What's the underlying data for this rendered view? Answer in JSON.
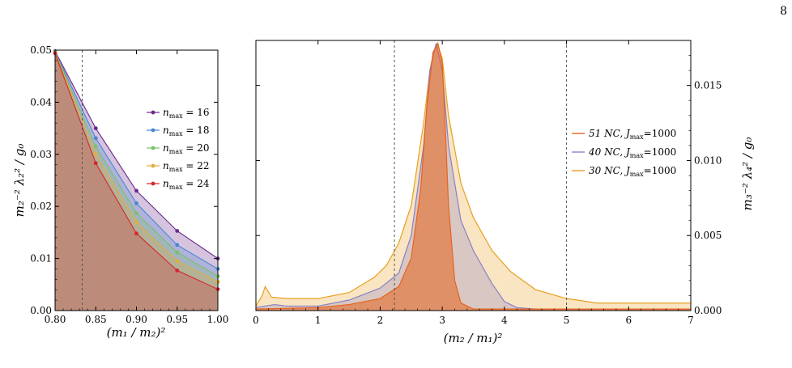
{
  "page_number": "8",
  "chart_data": [
    {
      "type": "area",
      "xlabel": "(m₁ / m₂)²",
      "ylabel": "m₂⁻² λ₂² / g₀",
      "xlim": [
        0.8,
        1.0
      ],
      "ylim": [
        0,
        0.05
      ],
      "x_ticks": [
        "0.80",
        "0.85",
        "0.90",
        "0.95",
        "1.00"
      ],
      "y_ticks": [
        "0.00",
        "0.01",
        "0.02",
        "0.03",
        "0.04",
        "0.05"
      ],
      "vline": 0.8333,
      "legend_position": "right",
      "x": [
        0.8,
        0.85,
        0.9,
        0.95,
        1.0
      ],
      "series": [
        {
          "name": "n_max = 16",
          "label_pre": "n",
          "label_sub": "max",
          "label_post": " = 16",
          "color": "#6a2a8c",
          "values": [
            0.0498,
            0.035,
            0.023,
            0.0153,
            0.01
          ]
        },
        {
          "name": "n_max = 18",
          "label_pre": "n",
          "label_sub": "max",
          "label_post": " = 18",
          "color": "#4a86cf",
          "values": [
            0.0497,
            0.0331,
            0.0206,
            0.0126,
            0.008
          ]
        },
        {
          "name": "n_max = 20",
          "label_pre": "n",
          "label_sub": "max",
          "label_post": " = 20",
          "color": "#7cc06a",
          "values": [
            0.0496,
            0.0315,
            0.0187,
            0.0112,
            0.0066
          ]
        },
        {
          "name": "n_max = 22",
          "label_pre": "n",
          "label_sub": "max",
          "label_post": " = 22",
          "color": "#e2ae3a",
          "values": [
            0.0495,
            0.03,
            0.017,
            0.0095,
            0.0055
          ]
        },
        {
          "name": "n_max = 24",
          "label_pre": "n",
          "label_sub": "max",
          "label_post": " = 24",
          "color": "#d6262e",
          "values": [
            0.0494,
            0.0283,
            0.0148,
            0.0077,
            0.0041
          ]
        }
      ]
    },
    {
      "type": "area",
      "xlabel": "(m₂ / m₁)²",
      "ylabel": "m₃⁻² λ₄² / g₀",
      "xlim": [
        0,
        7
      ],
      "ylim": [
        0,
        0.018
      ],
      "x_ticks": [
        "0",
        "1",
        "2",
        "3",
        "4",
        "5",
        "6",
        "7"
      ],
      "y_ticks": [
        "0.000",
        "0.005",
        "0.010",
        "0.015"
      ],
      "vlines": [
        2.23,
        5.0
      ],
      "legend_position": "right",
      "series": [
        {
          "name": "30 NC, J_max=1000",
          "label_pre": "30 NC, J",
          "label_sub": "max",
          "label_post": "=1000",
          "color": "#e8a020",
          "x": [
            0.0,
            0.1,
            0.15,
            0.25,
            0.5,
            1.0,
            1.5,
            1.9,
            2.1,
            2.3,
            2.5,
            2.7,
            2.8,
            2.85,
            2.92,
            3.0,
            3.1,
            3.3,
            3.5,
            3.8,
            4.1,
            4.5,
            5.0,
            5.5,
            7.0
          ],
          "values": [
            0.0003,
            0.001,
            0.0016,
            0.0009,
            0.0008,
            0.0008,
            0.0012,
            0.0022,
            0.003,
            0.0045,
            0.007,
            0.0125,
            0.016,
            0.017,
            0.0178,
            0.0168,
            0.013,
            0.0085,
            0.0062,
            0.004,
            0.0026,
            0.0014,
            0.0008,
            0.0005,
            0.0005
          ]
        },
        {
          "name": "40 NC, J_max=1000",
          "label_pre": "40 NC, J",
          "label_sub": "max",
          "label_post": "=1000",
          "color": "#8a80c8",
          "x": [
            0.0,
            0.3,
            0.5,
            1.0,
            1.5,
            2.0,
            2.3,
            2.5,
            2.7,
            2.8,
            2.9,
            3.0,
            3.1,
            3.3,
            3.5,
            3.8,
            4.0,
            4.2,
            4.5,
            5.0,
            7.0
          ],
          "values": [
            0.0002,
            0.0004,
            0.0003,
            0.0003,
            0.0007,
            0.0015,
            0.0025,
            0.005,
            0.011,
            0.016,
            0.0178,
            0.016,
            0.011,
            0.006,
            0.004,
            0.0018,
            0.0006,
            0.0002,
            0.0001,
            0.0001,
            0.0001
          ]
        },
        {
          "name": "51 NC, J_max=1000",
          "label_pre": "51 NC, J",
          "label_sub": "max",
          "label_post": "=1000",
          "color": "#e8621e",
          "x": [
            0.0,
            1.0,
            1.5,
            2.0,
            2.3,
            2.5,
            2.65,
            2.75,
            2.85,
            2.93,
            3.0,
            3.05,
            3.1,
            3.2,
            3.3,
            3.5,
            4.0,
            7.0
          ],
          "values": [
            0.0001,
            0.0002,
            0.0004,
            0.0008,
            0.0016,
            0.0035,
            0.008,
            0.0135,
            0.0172,
            0.0178,
            0.0165,
            0.012,
            0.007,
            0.002,
            0.0005,
            0.0001,
            0.0001,
            0.0001
          ]
        }
      ]
    }
  ]
}
